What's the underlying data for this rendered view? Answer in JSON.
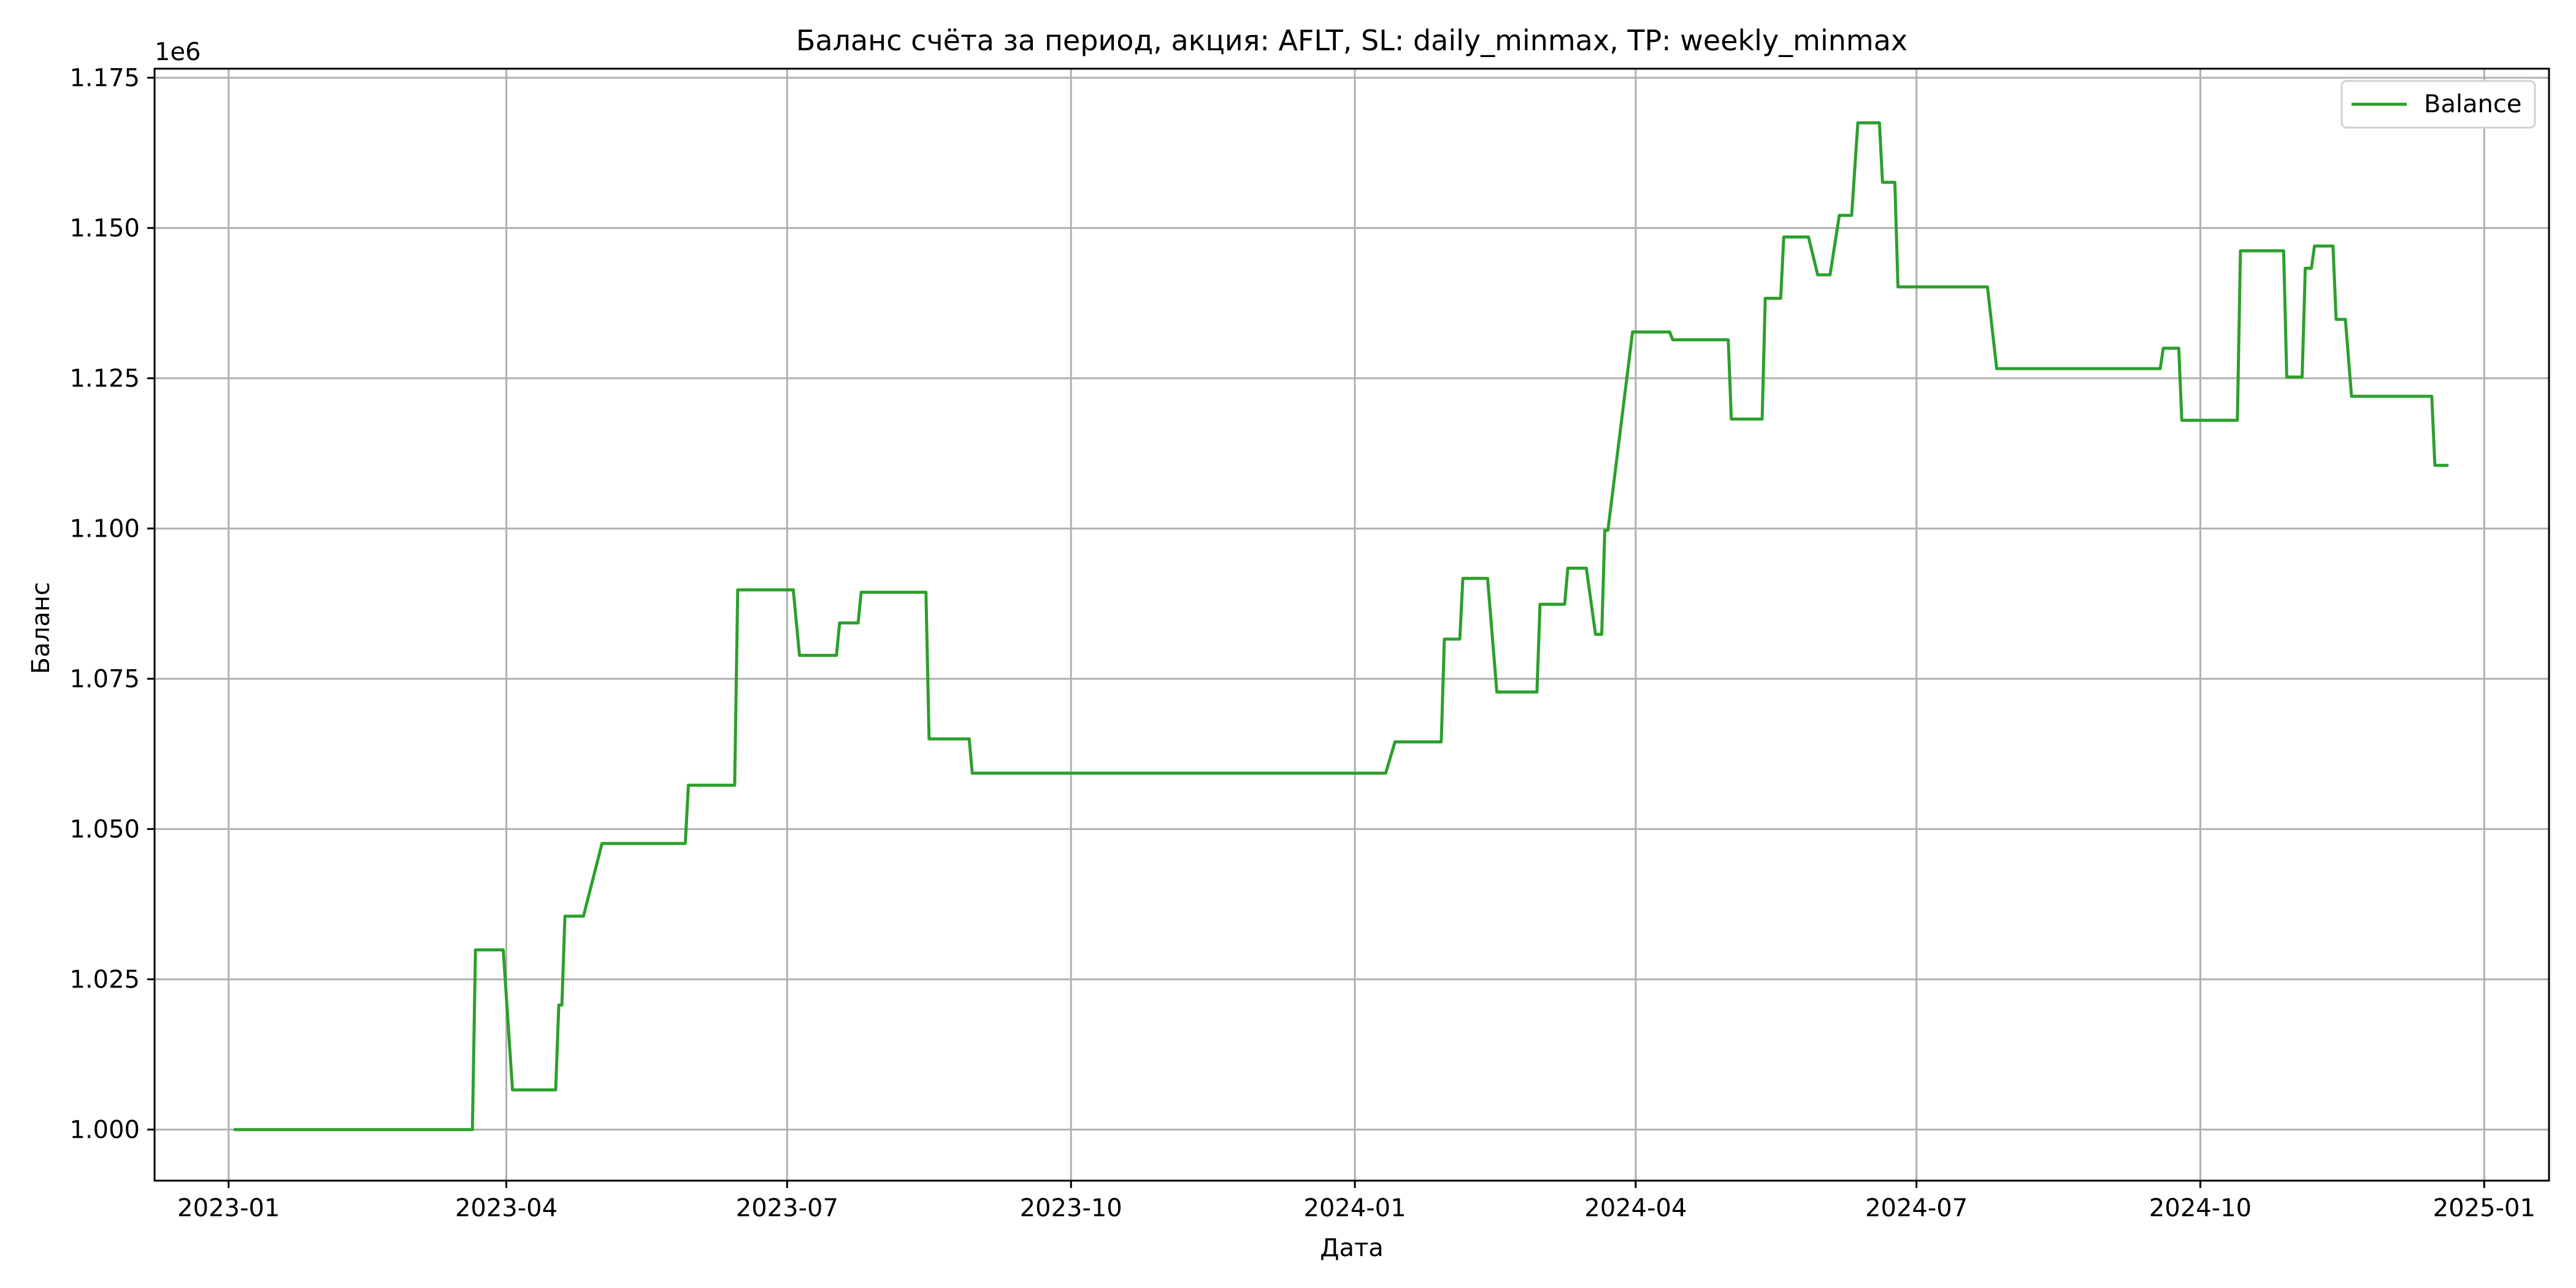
{
  "chart_data": {
    "type": "line",
    "title": "Баланс счёта за период, акция: AFLT, SL: daily_minmax, TP: weekly_minmax",
    "xlabel": "Дата",
    "ylabel": "Баланс",
    "y_offset_label": "1e6",
    "y_scale": 1000000,
    "xlim": [
      "2022-12-08",
      "2025-01-22"
    ],
    "ylim": [
      0.9915,
      1.1765
    ],
    "x_ticks": [
      "2023-01",
      "2023-04",
      "2023-07",
      "2023-10",
      "2024-01",
      "2024-04",
      "2024-07",
      "2024-10",
      "2025-01"
    ],
    "y_ticks": [
      "1.000",
      "1.025",
      "1.050",
      "1.075",
      "1.100",
      "1.125",
      "1.150",
      "1.175"
    ],
    "grid": true,
    "legend_position": "top-right",
    "colors": {
      "line": "#2ca02c",
      "grid": "#b0b0b0",
      "axes": "#000000"
    },
    "series": [
      {
        "name": "Balance",
        "points": [
          [
            "2023-01-03",
            1.0
          ],
          [
            "2023-03-21",
            1.0
          ],
          [
            "2023-03-22",
            1.0299
          ],
          [
            "2023-03-31",
            1.0299
          ],
          [
            "2023-04-03",
            1.0066
          ],
          [
            "2023-04-17",
            1.0066
          ],
          [
            "2023-04-18",
            1.0207
          ],
          [
            "2023-04-19",
            1.0207
          ],
          [
            "2023-04-20",
            1.0355
          ],
          [
            "2023-04-26",
            1.0355
          ],
          [
            "2023-05-02",
            1.0476
          ],
          [
            "2023-05-29",
            1.0476
          ],
          [
            "2023-05-30",
            1.0573
          ],
          [
            "2023-06-14",
            1.0573
          ],
          [
            "2023-06-15",
            1.0898
          ],
          [
            "2023-07-03",
            1.0898
          ],
          [
            "2023-07-05",
            1.0789
          ],
          [
            "2023-07-17",
            1.0789
          ],
          [
            "2023-07-18",
            1.0843
          ],
          [
            "2023-07-24",
            1.0843
          ],
          [
            "2023-07-25",
            1.0894
          ],
          [
            "2023-08-15",
            1.0894
          ],
          [
            "2023-08-16",
            1.065
          ],
          [
            "2023-08-29",
            1.065
          ],
          [
            "2023-08-30",
            1.0593
          ],
          [
            "2024-01-11",
            1.0593
          ],
          [
            "2024-01-14",
            1.0645
          ],
          [
            "2024-01-29",
            1.0645
          ],
          [
            "2024-01-30",
            1.0816
          ],
          [
            "2024-02-04",
            1.0816
          ],
          [
            "2024-02-05",
            1.0917
          ],
          [
            "2024-02-13",
            1.0917
          ],
          [
            "2024-02-16",
            1.0728
          ],
          [
            "2024-02-29",
            1.0728
          ],
          [
            "2024-03-01",
            1.0874
          ],
          [
            "2024-03-09",
            1.0874
          ],
          [
            "2024-03-10",
            1.0934
          ],
          [
            "2024-03-16",
            1.0934
          ],
          [
            "2024-03-19",
            1.0824
          ],
          [
            "2024-03-21",
            1.0824
          ],
          [
            "2024-03-22",
            1.0997
          ],
          [
            "2024-03-23",
            1.0997
          ],
          [
            "2024-03-31",
            1.1327
          ],
          [
            "2024-04-12",
            1.1327
          ],
          [
            "2024-04-13",
            1.1314
          ],
          [
            "2024-05-01",
            1.1314
          ],
          [
            "2024-05-02",
            1.1182
          ],
          [
            "2024-05-12",
            1.1182
          ],
          [
            "2024-05-13",
            1.1383
          ],
          [
            "2024-05-18",
            1.1383
          ],
          [
            "2024-05-19",
            1.1485
          ],
          [
            "2024-05-27",
            1.1485
          ],
          [
            "2024-05-30",
            1.1422
          ],
          [
            "2024-06-03",
            1.1422
          ],
          [
            "2024-06-06",
            1.1521
          ],
          [
            "2024-06-10",
            1.1521
          ],
          [
            "2024-06-12",
            1.1675
          ],
          [
            "2024-06-19",
            1.1675
          ],
          [
            "2024-06-20",
            1.1576
          ],
          [
            "2024-06-24",
            1.1576
          ],
          [
            "2024-06-25",
            1.1402
          ],
          [
            "2024-07-24",
            1.1402
          ],
          [
            "2024-07-27",
            1.1266
          ],
          [
            "2024-09-18",
            1.1266
          ],
          [
            "2024-09-19",
            1.13
          ],
          [
            "2024-09-24",
            1.13
          ],
          [
            "2024-09-25",
            1.118
          ],
          [
            "2024-10-13",
            1.118
          ],
          [
            "2024-10-14",
            1.1462
          ],
          [
            "2024-10-28",
            1.1462
          ],
          [
            "2024-10-29",
            1.1252
          ],
          [
            "2024-11-03",
            1.1252
          ],
          [
            "2024-11-04",
            1.1433
          ],
          [
            "2024-11-06",
            1.1433
          ],
          [
            "2024-11-07",
            1.147
          ],
          [
            "2024-11-13",
            1.147
          ],
          [
            "2024-11-14",
            1.1348
          ],
          [
            "2024-11-17",
            1.1348
          ],
          [
            "2024-11-19",
            1.122
          ],
          [
            "2024-12-15",
            1.122
          ],
          [
            "2024-12-16",
            1.1105
          ],
          [
            "2024-12-20",
            1.1105
          ]
        ]
      }
    ]
  }
}
